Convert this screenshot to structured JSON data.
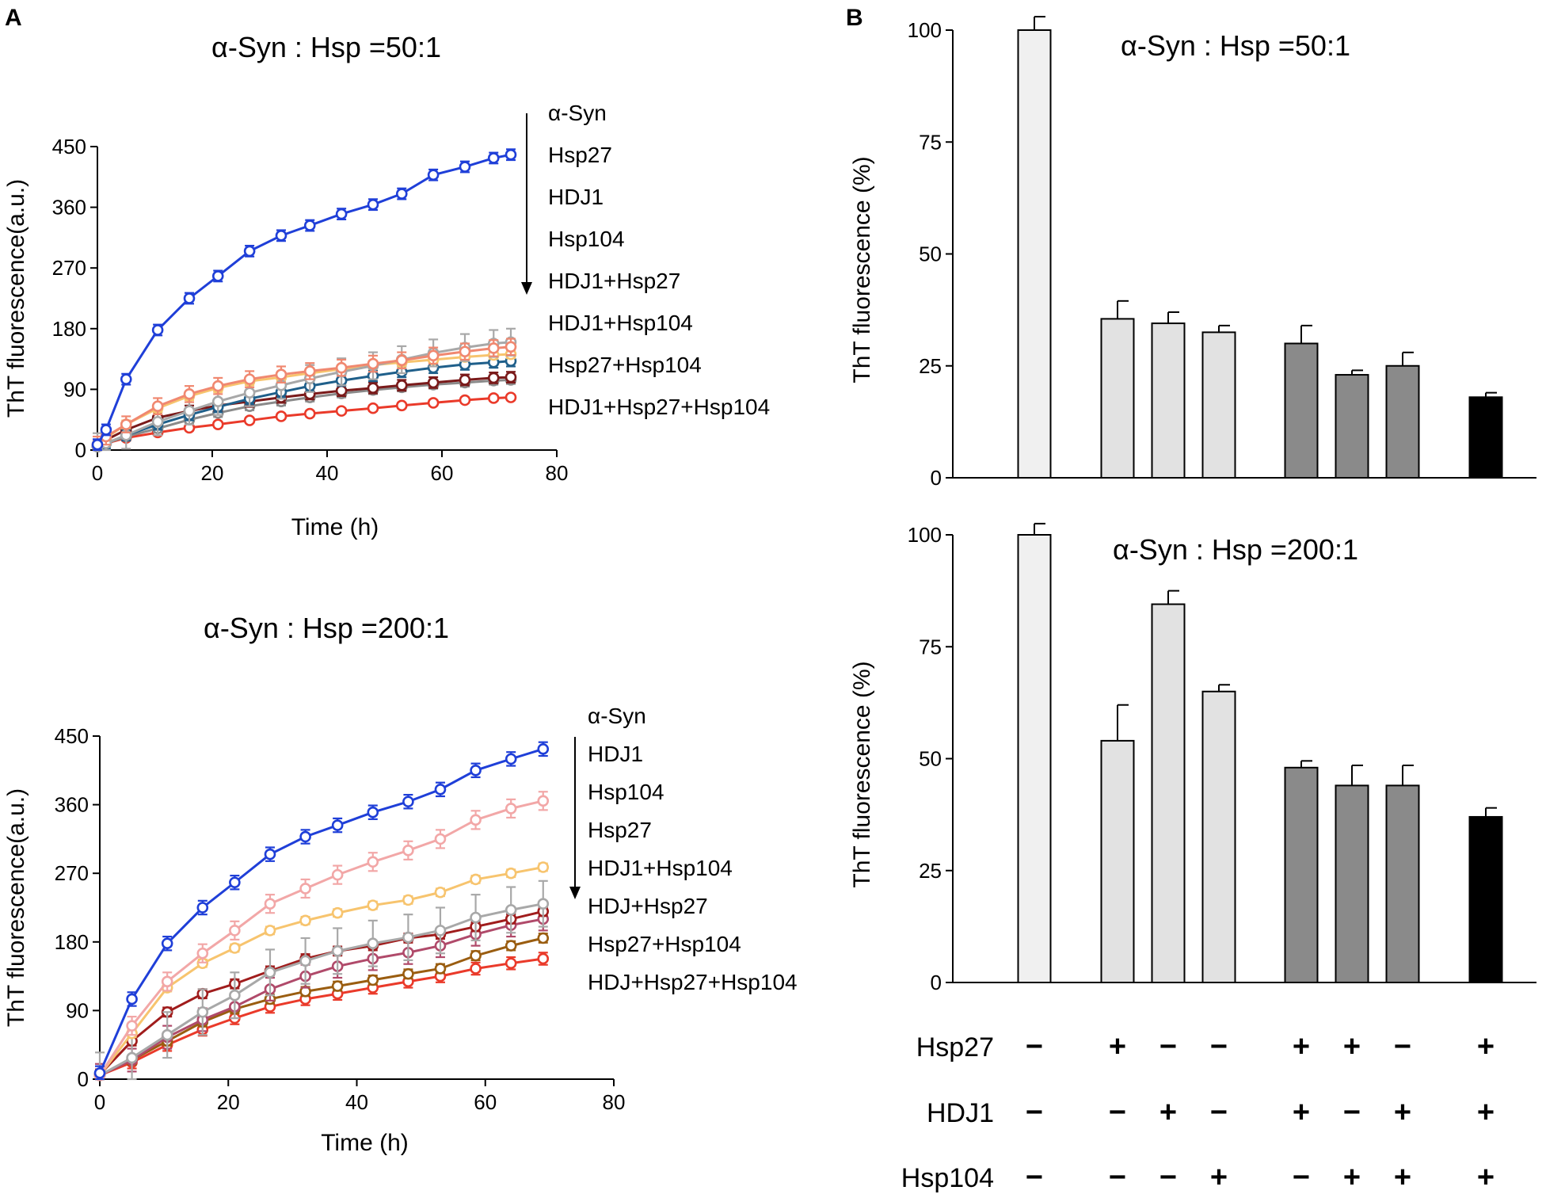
{
  "panel_a_label": "A",
  "panel_b_label": "B",
  "treatment_table": {
    "rows": [
      {
        "label": "Hsp27",
        "signs": [
          "−",
          "+",
          "−",
          "−",
          "+",
          "+",
          "−",
          "+"
        ]
      },
      {
        "label": "HDJ1",
        "signs": [
          "−",
          "−",
          "+",
          "−",
          "+",
          "−",
          "+",
          "+"
        ]
      },
      {
        "label": "Hsp104",
        "signs": [
          "−",
          "−",
          "−",
          "+",
          "−",
          "+",
          "+",
          "+"
        ]
      }
    ]
  },
  "colors": {
    "blue": "#1f3fd8",
    "steel": "#1f5f8a",
    "grey": "#a8a8a8",
    "maroon": "#7a1a1a",
    "red": "#ea3a2a",
    "salmon": "#f08870",
    "pink": "#f2a7a7",
    "yellow": "#f7c46e",
    "brown": "#9a5d10",
    "darkred": "#a01c1c",
    "mauve": "#b04a6a",
    "bar_white": "#f0f0f0",
    "bar_light": "#e2e2e2",
    "bar_dark": "#8a8a8a",
    "bar_black": "#000000"
  },
  "chart_data": [
    {
      "id": "A_top",
      "type": "line",
      "title": "α-Syn : Hsp =50:1",
      "xlabel": "Time (h)",
      "ylabel": "ThT fluorescence(a.u.)",
      "xlim": [
        0,
        80
      ],
      "ylim": [
        0,
        450
      ],
      "xticks": [
        0,
        20,
        40,
        60,
        80
      ],
      "yticks": [
        0,
        90,
        180,
        270,
        360,
        450
      ],
      "legend": [
        "α-Syn",
        "Hsp27",
        "HDJ1",
        "Hsp104",
        "HDJ1+Hsp27",
        "HDJ1+Hsp104",
        "Hsp27+Hsp104",
        "HDJ1+Hsp27+Hsp104"
      ],
      "legend_position": "right",
      "x": [
        0,
        1.5,
        5,
        10.5,
        16,
        21,
        26.5,
        32,
        37,
        42.5,
        48,
        53,
        58.5,
        64,
        69,
        72
      ],
      "series": [
        {
          "name": "α-Syn",
          "color": "#1f3fd8",
          "err": 8,
          "values": [
            8,
            30,
            105,
            178,
            225,
            258,
            295,
            318,
            333,
            350,
            364,
            380,
            408,
            420,
            433,
            438
          ]
        },
        {
          "name": "Hsp27",
          "color": "#f08870",
          "err": 12,
          "values": [
            8,
            20,
            38,
            65,
            83,
            95,
            105,
            112,
            117,
            122,
            128,
            133,
            140,
            146,
            151,
            153
          ]
        },
        {
          "name": "HDJ1",
          "color": "#a8a8a8",
          "err": 20,
          "values": [
            5,
            10,
            22,
            42,
            58,
            72,
            85,
            96,
            106,
            116,
            125,
            134,
            144,
            152,
            158,
            160
          ]
        },
        {
          "name": "Hsp104",
          "color": "#f7c46e",
          "err": 6,
          "values": [
            8,
            18,
            38,
            62,
            80,
            92,
            102,
            108,
            114,
            120,
            126,
            130,
            134,
            138,
            141,
            142
          ]
        },
        {
          "name": "HDJ1+Hsp27",
          "color": "#1f5f8a",
          "err": 8,
          "values": [
            5,
            10,
            22,
            38,
            52,
            64,
            76,
            86,
            95,
            103,
            110,
            116,
            122,
            127,
            130,
            132
          ]
        },
        {
          "name": "HDJ1+Hsp104",
          "color": "#7a1a1a",
          "err": 8,
          "values": [
            7,
            15,
            30,
            48,
            58,
            66,
            72,
            78,
            83,
            88,
            92,
            96,
            100,
            104,
            107,
            108
          ]
        },
        {
          "name": "Hsp27+Hsp104",
          "color": "#8a8a8a",
          "err": 6,
          "values": [
            5,
            10,
            20,
            32,
            45,
            55,
            65,
            72,
            78,
            84,
            89,
            93,
            97,
            100,
            103,
            104
          ]
        },
        {
          "name": "HDJ1+Hsp27+Hsp104",
          "color": "#ea3a2a",
          "err": 4,
          "values": [
            6,
            10,
            18,
            26,
            33,
            38,
            44,
            50,
            54,
            58,
            62,
            66,
            70,
            74,
            77,
            78
          ]
        }
      ]
    },
    {
      "id": "A_bottom",
      "type": "line",
      "title": "α-Syn : Hsp =200:1",
      "xlabel": "Time (h)",
      "ylabel": "ThT fluorescence(a.u.)",
      "xlim": [
        0,
        80
      ],
      "ylim": [
        0,
        450
      ],
      "xticks": [
        0,
        20,
        40,
        60,
        80
      ],
      "yticks": [
        0,
        90,
        180,
        270,
        360,
        450
      ],
      "legend": [
        "α-Syn",
        "HDJ1",
        "Hsp104",
        "Hsp27",
        "HDJ1+Hsp104",
        "HDJ+Hsp27",
        "Hsp27+Hsp104",
        "HDJ+Hsp27+Hsp104"
      ],
      "legend_position": "right",
      "x": [
        0,
        5,
        10.5,
        16,
        21,
        26.5,
        32,
        37,
        42.5,
        48,
        53,
        58.5,
        64,
        69
      ],
      "series": [
        {
          "name": "α-Syn",
          "color": "#1f3fd8",
          "err": 9,
          "values": [
            8,
            105,
            178,
            225,
            258,
            295,
            318,
            333,
            350,
            364,
            380,
            405,
            420,
            433
          ]
        },
        {
          "name": "HDJ1",
          "color": "#f2a7a7",
          "err": 12,
          "values": [
            5,
            70,
            128,
            165,
            195,
            230,
            250,
            268,
            285,
            300,
            315,
            340,
            355,
            365
          ]
        },
        {
          "name": "Hsp104",
          "color": "#f7c46e",
          "err": 5,
          "values": [
            5,
            60,
            120,
            152,
            172,
            195,
            208,
            218,
            228,
            235,
            245,
            262,
            270,
            278
          ]
        },
        {
          "name": "Hsp27",
          "color": "#a8a8a8",
          "err": 30,
          "values": [
            5,
            28,
            58,
            88,
            110,
            140,
            155,
            168,
            178,
            186,
            195,
            212,
            222,
            230
          ]
        },
        {
          "name": "HDJ1+Hsp104",
          "color": "#a01c1c",
          "err": 6,
          "values": [
            6,
            50,
            88,
            112,
            125,
            142,
            158,
            168,
            175,
            185,
            190,
            200,
            210,
            220
          ]
        },
        {
          "name": "HDJ+Hsp27",
          "color": "#b04a6a",
          "err": 15,
          "values": [
            5,
            25,
            55,
            78,
            95,
            118,
            135,
            148,
            158,
            166,
            175,
            190,
            202,
            210
          ]
        },
        {
          "name": "Hsp27+Hsp104",
          "color": "#9a5d10",
          "err": 6,
          "values": [
            5,
            25,
            50,
            75,
            92,
            105,
            115,
            122,
            130,
            138,
            145,
            162,
            175,
            185
          ]
        },
        {
          "name": "HDJ+Hsp27+Hsp104",
          "color": "#ea3a2a",
          "err": 8,
          "values": [
            5,
            22,
            45,
            65,
            80,
            95,
            105,
            112,
            120,
            128,
            135,
            145,
            152,
            158
          ]
        }
      ]
    },
    {
      "id": "B_top",
      "type": "bar",
      "title": "α-Syn : Hsp =50:1",
      "ylabel": "ThT fluorescence (%)",
      "ylim": [
        0,
        100
      ],
      "yticks": [
        0,
        25,
        50,
        75,
        100
      ],
      "categories": [
        "α-Syn",
        "Hsp27",
        "HDJ1",
        "Hsp104",
        "HDJ1+Hsp27",
        "Hsp27+Hsp104",
        "HDJ1+Hsp104",
        "HDJ1+Hsp27+Hsp104"
      ],
      "values": [
        100,
        35.5,
        34.5,
        32.5,
        30,
        23,
        25,
        18
      ],
      "errors": [
        3,
        4,
        2.5,
        1.5,
        4,
        1,
        3,
        1
      ],
      "fills": [
        "bar_white",
        "bar_light",
        "bar_light",
        "bar_light",
        "bar_dark",
        "bar_dark",
        "bar_dark",
        "bar_black"
      ]
    },
    {
      "id": "B_bottom",
      "type": "bar",
      "title": "α-Syn : Hsp =200:1",
      "ylabel": "ThT fluorescence (%)",
      "ylim": [
        0,
        100
      ],
      "yticks": [
        0,
        25,
        50,
        75,
        100
      ],
      "categories": [
        "α-Syn",
        "Hsp27",
        "HDJ1",
        "Hsp104",
        "HDJ1+Hsp27",
        "Hsp27+Hsp104",
        "HDJ1+Hsp104",
        "HDJ1+Hsp27+Hsp104"
      ],
      "values": [
        100,
        54,
        84.5,
        65,
        48,
        44,
        44,
        37
      ],
      "errors": [
        2.5,
        8,
        3,
        1.5,
        1.5,
        4.5,
        4.5,
        2
      ],
      "fills": [
        "bar_white",
        "bar_light",
        "bar_light",
        "bar_light",
        "bar_dark",
        "bar_dark",
        "bar_dark",
        "bar_black"
      ]
    }
  ]
}
